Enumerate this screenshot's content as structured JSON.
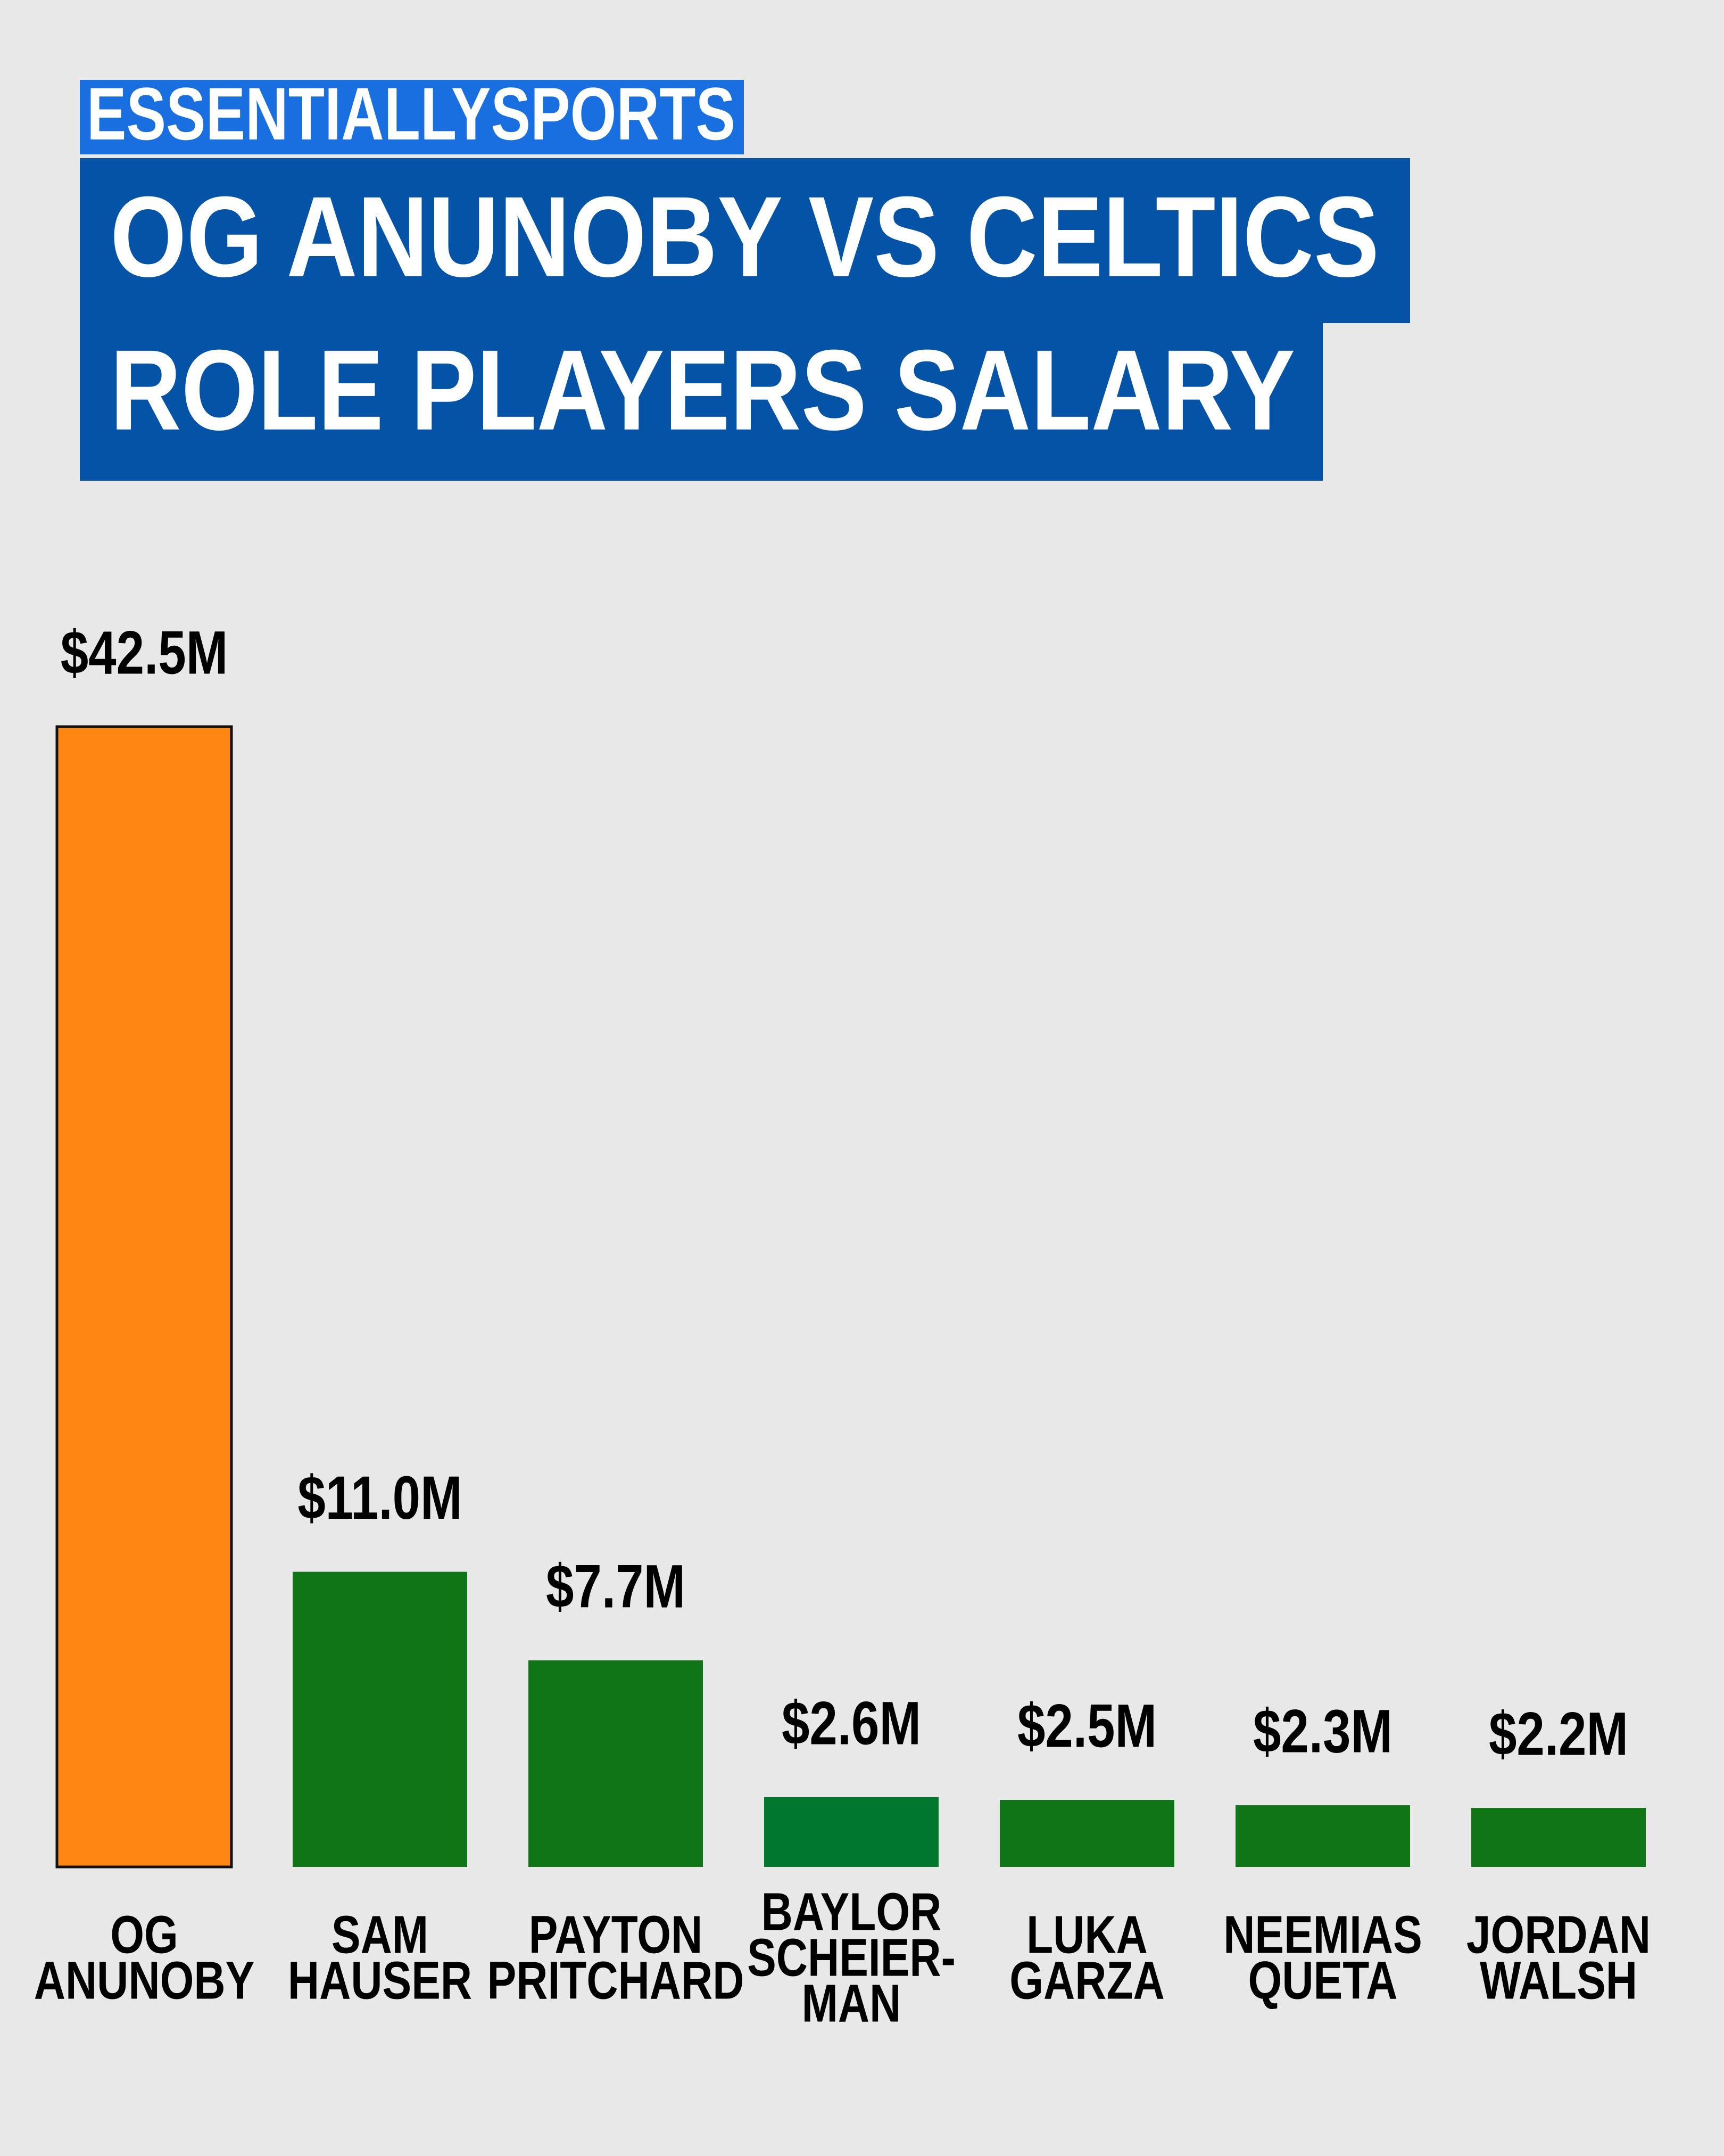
{
  "chart_data": {
    "type": "bar",
    "brand": "ESSENTIALLYSPORTS",
    "title": [
      "OG ANUNOBY VS CELTICS",
      "ROLE PLAYERS SALARY"
    ],
    "categories": [
      [
        "OG",
        "ANUNOBY"
      ],
      [
        "SAM",
        "HAUSER"
      ],
      [
        "PAYTON",
        "PRITCHARD"
      ],
      [
        "BAYLOR",
        "SCHEIER-",
        "MAN"
      ],
      [
        "LUKA",
        "GARZA"
      ],
      [
        "NEEMIAS",
        "QUETA"
      ],
      [
        "JORDAN",
        "WALSH"
      ]
    ],
    "values": [
      42.5,
      11.0,
      7.7,
      2.6,
      2.5,
      2.3,
      2.2
    ],
    "value_labels": [
      "$42.5M",
      "$11.0M",
      "$7.7M",
      "$2.6M",
      "$2.5M",
      "$2.3M",
      "$2.2M"
    ],
    "colors": [
      "#ff8613",
      "#107516",
      "#107516",
      "#00772e",
      "#107516",
      "#107516",
      "#107516"
    ]
  }
}
